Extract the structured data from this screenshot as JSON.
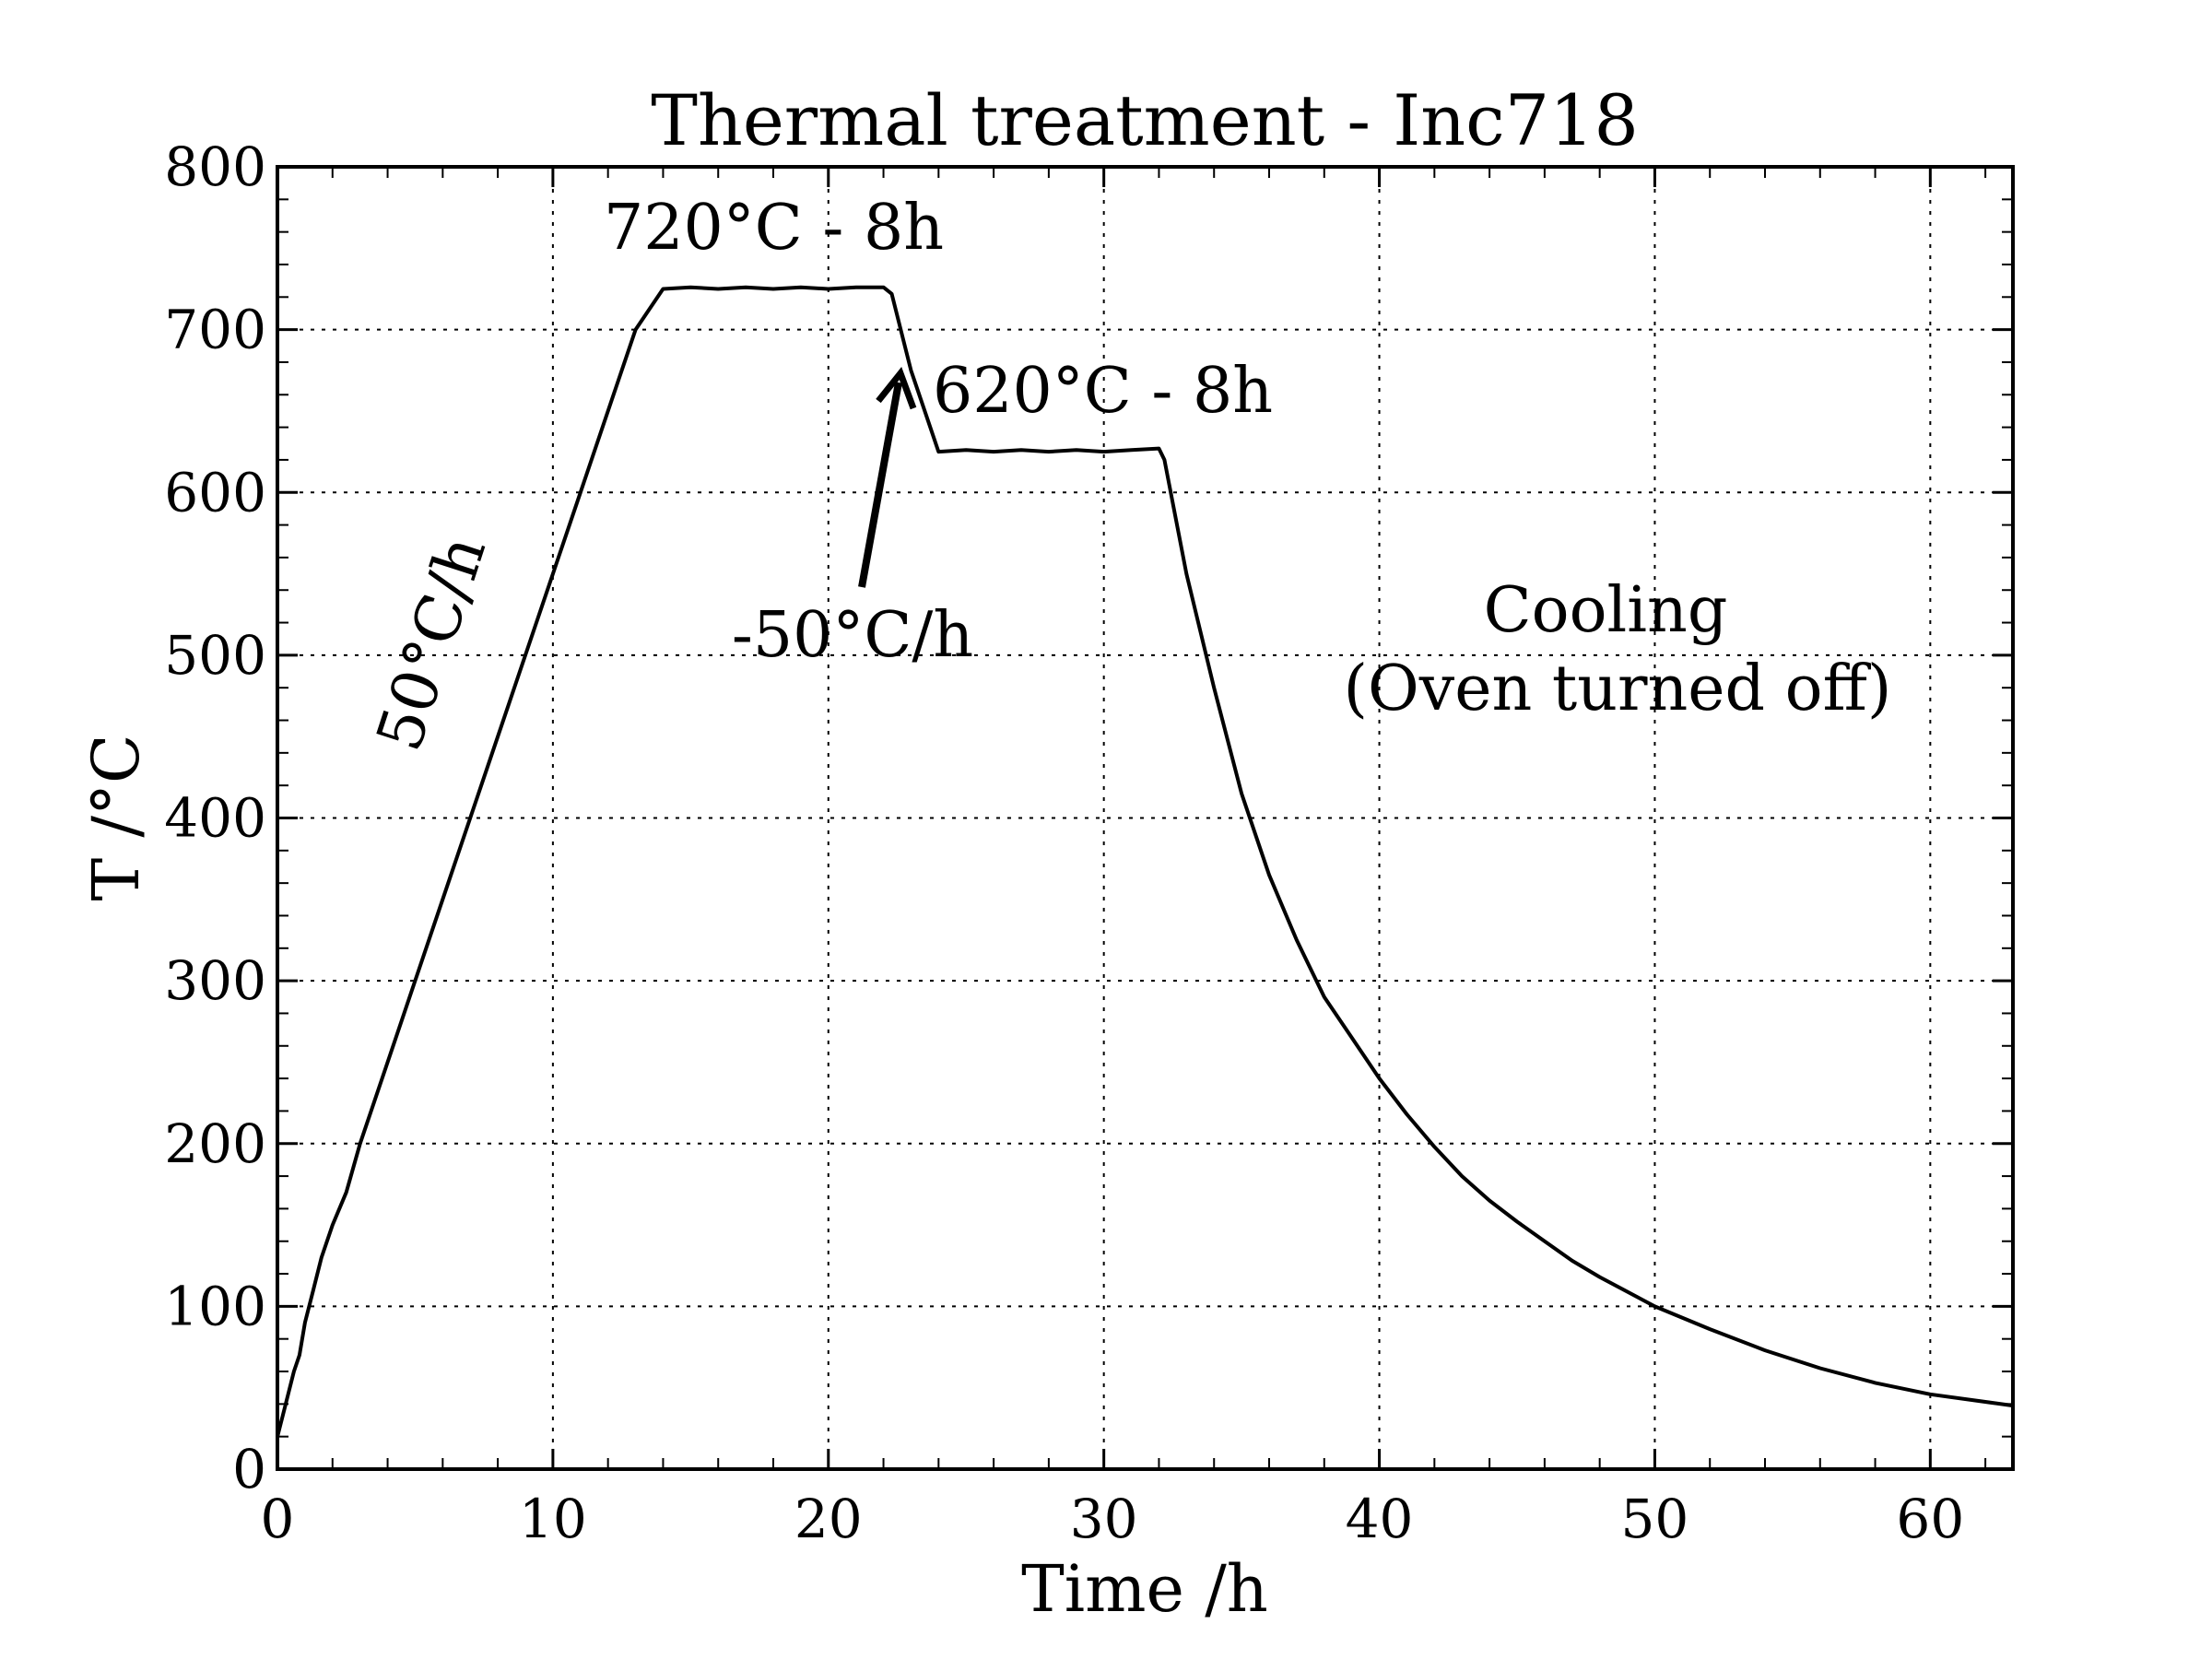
{
  "chart_data": {
    "type": "line",
    "title": "Thermal treatment - Inc718",
    "xlabel": "Time /h",
    "ylabel": "T /°C",
    "xlim": [
      0,
      63
    ],
    "ylim": [
      0,
      800
    ],
    "xticks": [
      0,
      10,
      20,
      30,
      40,
      50,
      60
    ],
    "yticks": [
      0,
      100,
      200,
      300,
      400,
      500,
      600,
      700,
      800
    ],
    "grid": true,
    "legend": "none",
    "line_color": "#000000",
    "series": [
      {
        "x": [
          0,
          0.3,
          0.6,
          0.8,
          1.0,
          1.3,
          1.6,
          2.0,
          2.5,
          3.0,
          4,
          5,
          6,
          7,
          8,
          9,
          10,
          11,
          12,
          13,
          14,
          15,
          16,
          17,
          18,
          19,
          20,
          21,
          22,
          22.3,
          23,
          24,
          25,
          26,
          27,
          28,
          29,
          30,
          31,
          32,
          32.2,
          33,
          34,
          35,
          36,
          37,
          38,
          39,
          40,
          41,
          42,
          43,
          44,
          45,
          46,
          47,
          48,
          49,
          50,
          52,
          54,
          56,
          58,
          60,
          63
        ],
        "y": [
          20,
          40,
          60,
          70,
          90,
          110,
          130,
          150,
          170,
          200,
          250,
          300,
          350,
          400,
          450,
          500,
          550,
          600,
          650,
          700,
          725,
          726,
          725,
          726,
          725,
          726,
          725,
          726,
          726,
          722,
          675,
          625,
          626,
          625,
          626,
          625,
          626,
          625,
          626,
          627,
          620,
          550,
          480,
          415,
          365,
          325,
          290,
          265,
          240,
          218,
          198,
          180,
          165,
          152,
          140,
          128,
          118,
          109,
          100,
          86,
          73,
          62,
          53,
          46,
          39
        ]
      }
    ],
    "annotations": [
      {
        "text": "720°C - 8h"
      },
      {
        "text": "620°C - 8h"
      },
      {
        "text": "50°C/h"
      },
      {
        "text": "-50°C/h"
      },
      {
        "text": "Cooling"
      },
      {
        "text": "(Oven turned off)"
      }
    ]
  }
}
